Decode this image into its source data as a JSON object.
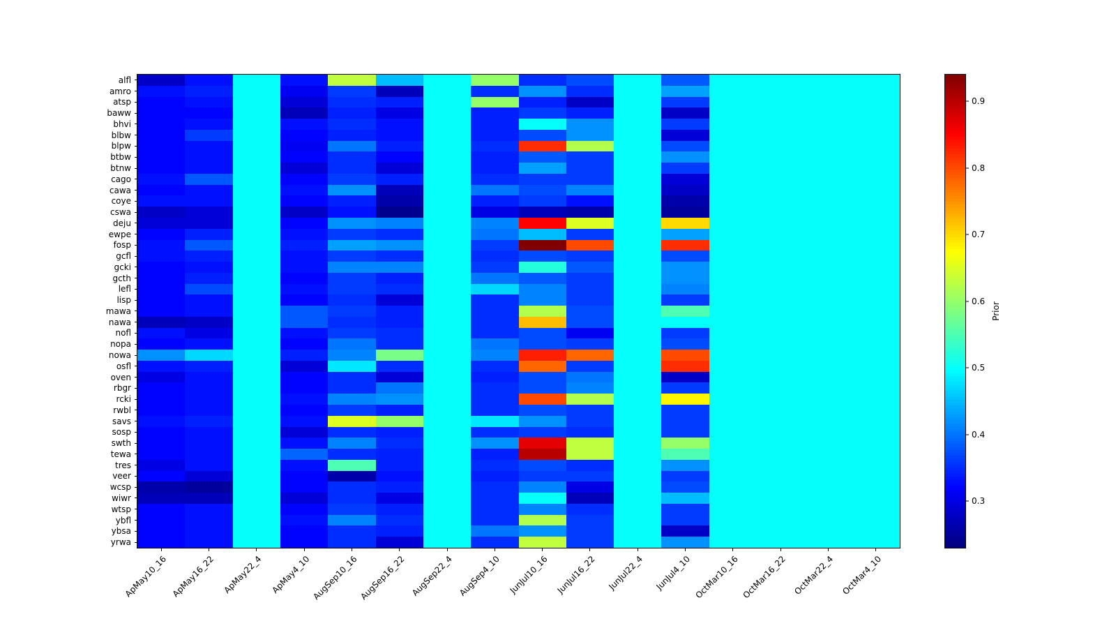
{
  "figure": {
    "background": "#ffffff"
  },
  "chart_data": {
    "type": "heatmap",
    "title": "",
    "xlabel": "",
    "ylabel": "",
    "colormap": "jet",
    "colorbar_label": "Prior",
    "vmin": 0.23,
    "vmax": 0.94,
    "colorbar_ticks": [
      0.3,
      0.4,
      0.5,
      0.6,
      0.7,
      0.8,
      0.9
    ],
    "x_categories": [
      "ApMay10_16",
      "ApMay16_22",
      "ApMay22_4",
      "ApMay4_10",
      "AugSep10_16",
      "AugSep16_22",
      "AugSep22_4",
      "AugSep4_10",
      "JunJul10_16",
      "JunJul16_22",
      "JunJul22_4",
      "JunJul4_10",
      "OctMar10_16",
      "OctMar16_22",
      "OctMar22_4",
      "OctMar4_10"
    ],
    "y_categories": [
      "alfl",
      "amro",
      "atsp",
      "baww",
      "bhvi",
      "blbw",
      "blpw",
      "btbw",
      "btnw",
      "cago",
      "cawa",
      "coye",
      "cswa",
      "deju",
      "ewpe",
      "fosp",
      "gcfl",
      "gcki",
      "gcth",
      "lefl",
      "lisp",
      "mawa",
      "nawa",
      "nofl",
      "nopa",
      "nowa",
      "osfl",
      "oven",
      "rbgr",
      "rcki",
      "rwbl",
      "savs",
      "sosp",
      "swth",
      "tewa",
      "tres",
      "veer",
      "wcsp",
      "wiwr",
      "wtsp",
      "ybfl",
      "ybsa",
      "yrwa"
    ],
    "values": [
      [
        0.28,
        0.33,
        0.5,
        0.33,
        0.63,
        0.45,
        0.5,
        0.6,
        0.35,
        0.37,
        0.5,
        0.38,
        0.5,
        0.5,
        0.5,
        0.5
      ],
      [
        0.33,
        0.34,
        0.5,
        0.31,
        0.36,
        0.27,
        0.5,
        0.35,
        0.42,
        0.35,
        0.5,
        0.43,
        0.5,
        0.5,
        0.5,
        0.5
      ],
      [
        0.32,
        0.33,
        0.5,
        0.29,
        0.35,
        0.34,
        0.5,
        0.6,
        0.34,
        0.28,
        0.5,
        0.36,
        0.5,
        0.5,
        0.5,
        0.5
      ],
      [
        0.32,
        0.32,
        0.5,
        0.27,
        0.34,
        0.3,
        0.5,
        0.34,
        0.36,
        0.34,
        0.5,
        0.28,
        0.5,
        0.5,
        0.5,
        0.5
      ],
      [
        0.32,
        0.33,
        0.5,
        0.33,
        0.35,
        0.33,
        0.5,
        0.34,
        0.5,
        0.42,
        0.5,
        0.36,
        0.5,
        0.5,
        0.5,
        0.5
      ],
      [
        0.32,
        0.36,
        0.5,
        0.32,
        0.34,
        0.33,
        0.5,
        0.34,
        0.37,
        0.42,
        0.5,
        0.29,
        0.5,
        0.5,
        0.5,
        0.5
      ],
      [
        0.32,
        0.33,
        0.5,
        0.31,
        0.4,
        0.34,
        0.5,
        0.35,
        0.82,
        0.62,
        0.5,
        0.37,
        0.5,
        0.5,
        0.5,
        0.5
      ],
      [
        0.32,
        0.33,
        0.5,
        0.32,
        0.35,
        0.32,
        0.5,
        0.34,
        0.38,
        0.36,
        0.5,
        0.42,
        0.5,
        0.5,
        0.5,
        0.5
      ],
      [
        0.32,
        0.33,
        0.5,
        0.29,
        0.35,
        0.29,
        0.5,
        0.34,
        0.43,
        0.36,
        0.5,
        0.36,
        0.5,
        0.5,
        0.5,
        0.5
      ],
      [
        0.33,
        0.38,
        0.5,
        0.32,
        0.36,
        0.34,
        0.5,
        0.35,
        0.36,
        0.36,
        0.5,
        0.29,
        0.5,
        0.5,
        0.5,
        0.5
      ],
      [
        0.32,
        0.33,
        0.5,
        0.33,
        0.42,
        0.27,
        0.5,
        0.4,
        0.37,
        0.41,
        0.5,
        0.28,
        0.5,
        0.5,
        0.5,
        0.5
      ],
      [
        0.33,
        0.33,
        0.5,
        0.32,
        0.34,
        0.26,
        0.5,
        0.34,
        0.36,
        0.33,
        0.5,
        0.26,
        0.5,
        0.5,
        0.5,
        0.5
      ],
      [
        0.28,
        0.29,
        0.5,
        0.28,
        0.33,
        0.24,
        0.5,
        0.3,
        0.27,
        0.26,
        0.5,
        0.25,
        0.5,
        0.5,
        0.5,
        0.5
      ],
      [
        0.29,
        0.29,
        0.5,
        0.32,
        0.42,
        0.41,
        0.5,
        0.41,
        0.85,
        0.65,
        0.5,
        0.7,
        0.5,
        0.5,
        0.5,
        0.5
      ],
      [
        0.32,
        0.34,
        0.5,
        0.33,
        0.36,
        0.35,
        0.5,
        0.4,
        0.45,
        0.36,
        0.5,
        0.43,
        0.5,
        0.5,
        0.5,
        0.5
      ],
      [
        0.33,
        0.38,
        0.5,
        0.34,
        0.43,
        0.42,
        0.5,
        0.36,
        0.94,
        0.8,
        0.5,
        0.82,
        0.5,
        0.5,
        0.5,
        0.5
      ],
      [
        0.33,
        0.34,
        0.5,
        0.33,
        0.36,
        0.35,
        0.5,
        0.35,
        0.37,
        0.36,
        0.5,
        0.37,
        0.5,
        0.5,
        0.5,
        0.5
      ],
      [
        0.32,
        0.33,
        0.5,
        0.33,
        0.41,
        0.41,
        0.5,
        0.36,
        0.52,
        0.38,
        0.5,
        0.42,
        0.5,
        0.5,
        0.5,
        0.5
      ],
      [
        0.32,
        0.34,
        0.5,
        0.32,
        0.36,
        0.34,
        0.5,
        0.4,
        0.38,
        0.36,
        0.5,
        0.42,
        0.5,
        0.5,
        0.5,
        0.5
      ],
      [
        0.32,
        0.37,
        0.5,
        0.33,
        0.36,
        0.35,
        0.5,
        0.47,
        0.41,
        0.36,
        0.5,
        0.41,
        0.5,
        0.5,
        0.5,
        0.5
      ],
      [
        0.32,
        0.33,
        0.5,
        0.32,
        0.35,
        0.29,
        0.5,
        0.35,
        0.41,
        0.36,
        0.5,
        0.36,
        0.5,
        0.5,
        0.5,
        0.5
      ],
      [
        0.32,
        0.33,
        0.5,
        0.38,
        0.36,
        0.34,
        0.5,
        0.35,
        0.62,
        0.37,
        0.5,
        0.55,
        0.5,
        0.5,
        0.5,
        0.5
      ],
      [
        0.27,
        0.28,
        0.5,
        0.38,
        0.35,
        0.34,
        0.5,
        0.35,
        0.72,
        0.37,
        0.5,
        0.5,
        0.5,
        0.5,
        0.5,
        0.5
      ],
      [
        0.33,
        0.3,
        0.5,
        0.33,
        0.36,
        0.35,
        0.5,
        0.35,
        0.37,
        0.31,
        0.5,
        0.36,
        0.5,
        0.5,
        0.5,
        0.5
      ],
      [
        0.32,
        0.33,
        0.5,
        0.32,
        0.4,
        0.35,
        0.5,
        0.4,
        0.37,
        0.36,
        0.5,
        0.37,
        0.5,
        0.5,
        0.5,
        0.5
      ],
      [
        0.42,
        0.47,
        0.5,
        0.34,
        0.41,
        0.58,
        0.5,
        0.41,
        0.83,
        0.78,
        0.5,
        0.8,
        0.5,
        0.5,
        0.5,
        0.5
      ],
      [
        0.33,
        0.34,
        0.5,
        0.29,
        0.48,
        0.35,
        0.5,
        0.35,
        0.78,
        0.36,
        0.5,
        0.82,
        0.5,
        0.5,
        0.5,
        0.5
      ],
      [
        0.3,
        0.33,
        0.5,
        0.32,
        0.35,
        0.29,
        0.5,
        0.34,
        0.37,
        0.4,
        0.5,
        0.28,
        0.5,
        0.5,
        0.5,
        0.5
      ],
      [
        0.32,
        0.33,
        0.5,
        0.32,
        0.35,
        0.4,
        0.5,
        0.35,
        0.37,
        0.41,
        0.5,
        0.36,
        0.5,
        0.5,
        0.5,
        0.5
      ],
      [
        0.32,
        0.33,
        0.5,
        0.33,
        0.41,
        0.42,
        0.5,
        0.35,
        0.8,
        0.62,
        0.5,
        0.68,
        0.5,
        0.5,
        0.5,
        0.5
      ],
      [
        0.32,
        0.33,
        0.5,
        0.32,
        0.36,
        0.34,
        0.5,
        0.35,
        0.37,
        0.36,
        0.5,
        0.36,
        0.5,
        0.5,
        0.5,
        0.5
      ],
      [
        0.33,
        0.34,
        0.5,
        0.33,
        0.65,
        0.6,
        0.5,
        0.48,
        0.42,
        0.36,
        0.5,
        0.36,
        0.5,
        0.5,
        0.5,
        0.5
      ],
      [
        0.32,
        0.33,
        0.5,
        0.29,
        0.35,
        0.34,
        0.5,
        0.35,
        0.36,
        0.35,
        0.5,
        0.36,
        0.5,
        0.5,
        0.5,
        0.5
      ],
      [
        0.32,
        0.33,
        0.5,
        0.33,
        0.41,
        0.35,
        0.5,
        0.42,
        0.87,
        0.63,
        0.5,
        0.6,
        0.5,
        0.5,
        0.5,
        0.5
      ],
      [
        0.32,
        0.33,
        0.5,
        0.39,
        0.35,
        0.34,
        0.5,
        0.34,
        0.9,
        0.63,
        0.5,
        0.55,
        0.5,
        0.5,
        0.5,
        0.5
      ],
      [
        0.3,
        0.33,
        0.5,
        0.33,
        0.55,
        0.34,
        0.5,
        0.35,
        0.37,
        0.35,
        0.5,
        0.42,
        0.5,
        0.5,
        0.5,
        0.5
      ],
      [
        0.32,
        0.29,
        0.5,
        0.32,
        0.26,
        0.33,
        0.5,
        0.34,
        0.36,
        0.36,
        0.5,
        0.36,
        0.5,
        0.5,
        0.5,
        0.5
      ],
      [
        0.26,
        0.25,
        0.5,
        0.32,
        0.35,
        0.34,
        0.5,
        0.35,
        0.41,
        0.3,
        0.5,
        0.37,
        0.5,
        0.5,
        0.5,
        0.5
      ],
      [
        0.27,
        0.27,
        0.5,
        0.29,
        0.35,
        0.3,
        0.5,
        0.35,
        0.5,
        0.27,
        0.5,
        0.45,
        0.5,
        0.5,
        0.5,
        0.5
      ],
      [
        0.32,
        0.33,
        0.5,
        0.32,
        0.36,
        0.34,
        0.5,
        0.35,
        0.41,
        0.35,
        0.5,
        0.36,
        0.5,
        0.5,
        0.5,
        0.5
      ],
      [
        0.32,
        0.33,
        0.5,
        0.33,
        0.41,
        0.35,
        0.5,
        0.35,
        0.62,
        0.36,
        0.5,
        0.36,
        0.5,
        0.5,
        0.5,
        0.5
      ],
      [
        0.32,
        0.33,
        0.5,
        0.32,
        0.35,
        0.34,
        0.5,
        0.4,
        0.42,
        0.36,
        0.5,
        0.28,
        0.5,
        0.5,
        0.5,
        0.5
      ],
      [
        0.32,
        0.33,
        0.5,
        0.32,
        0.35,
        0.29,
        0.5,
        0.35,
        0.63,
        0.36,
        0.5,
        0.42,
        0.5,
        0.5,
        0.5,
        0.5
      ]
    ]
  }
}
